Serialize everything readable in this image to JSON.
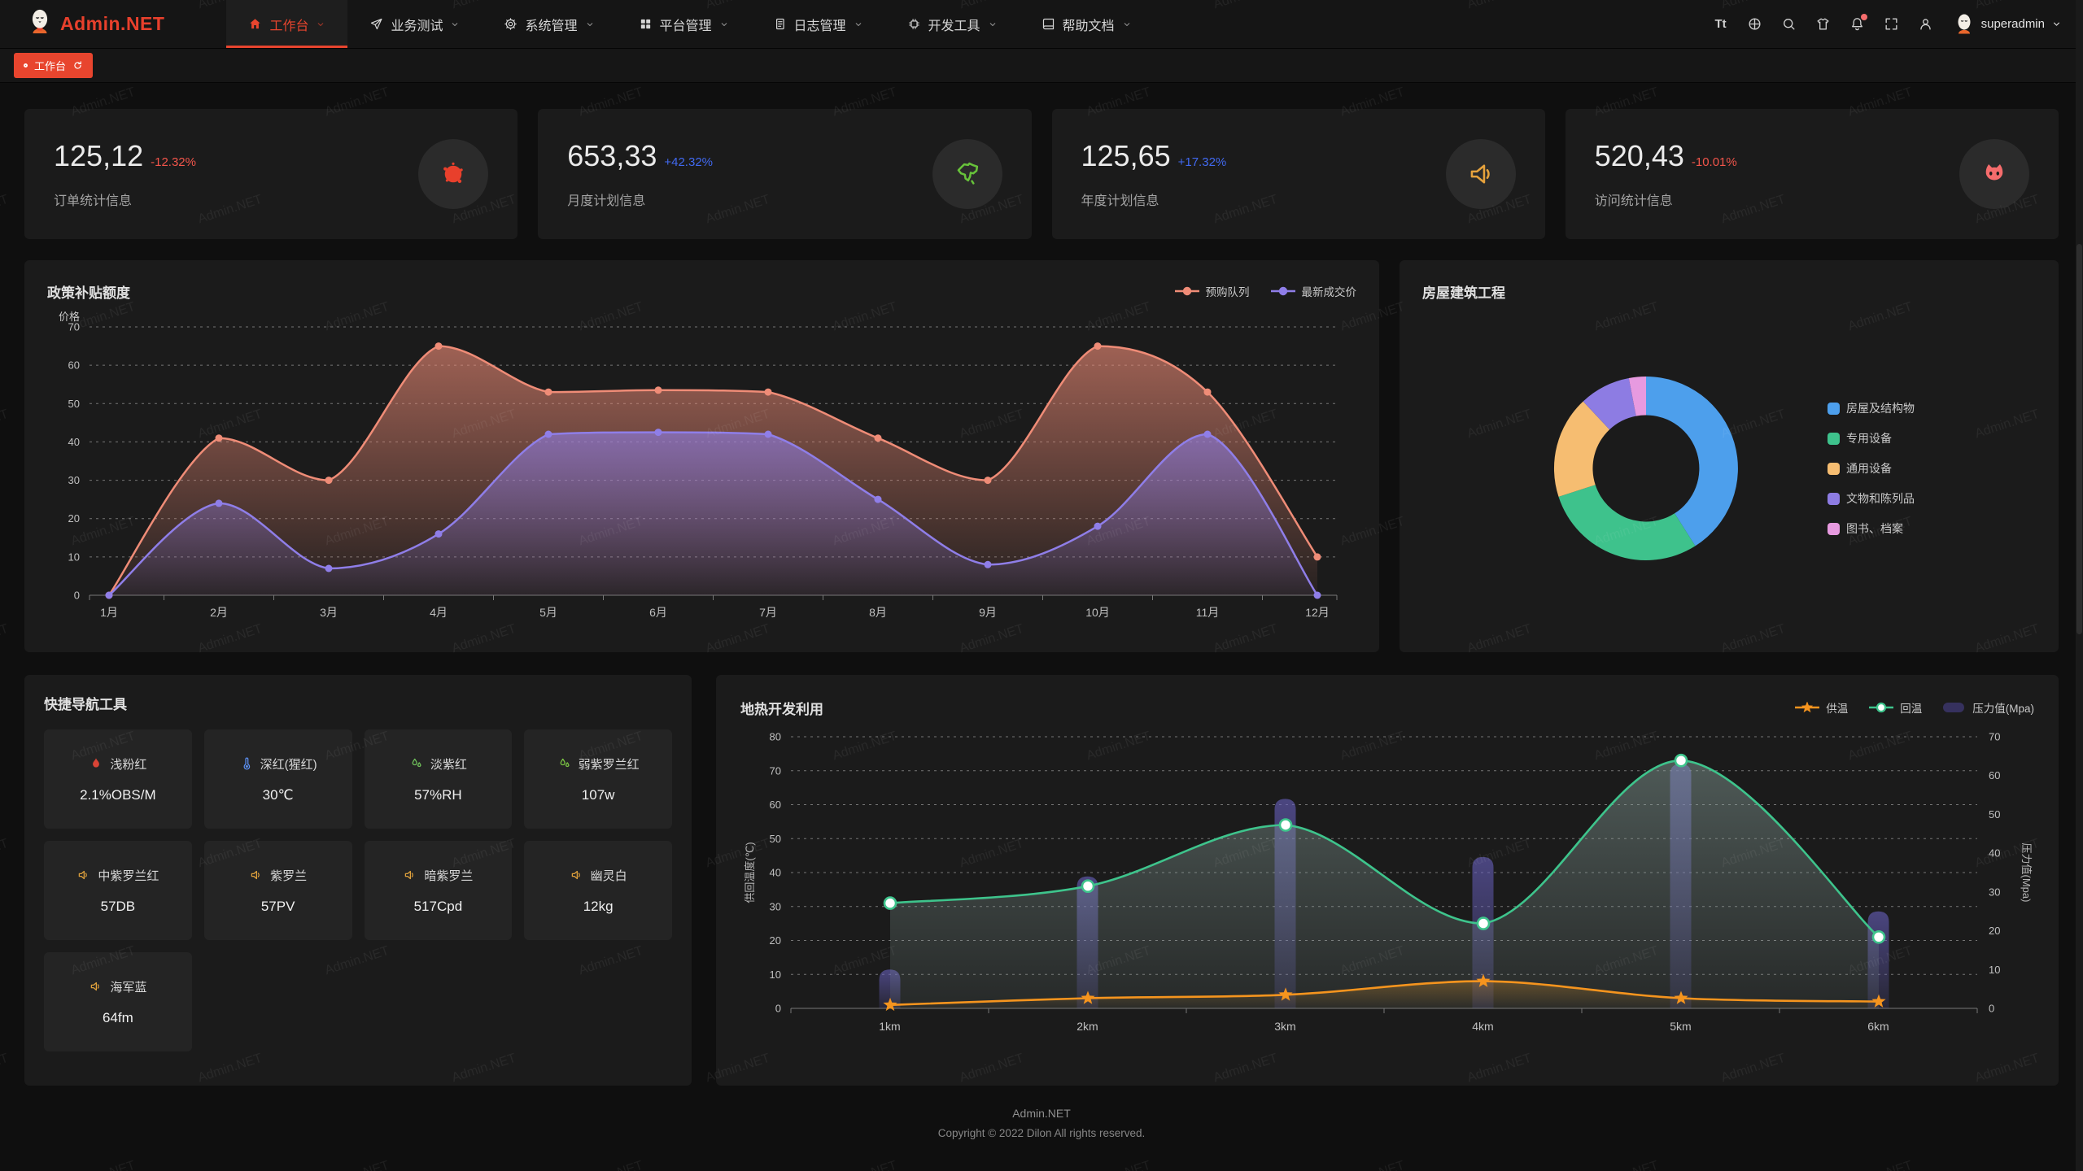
{
  "brand": {
    "name": "Admin.NET",
    "color": "#e8402c"
  },
  "nav": {
    "items": [
      {
        "id": "workbench",
        "label": "工作台",
        "icon": "home",
        "active": true
      },
      {
        "id": "business-test",
        "label": "业务测试",
        "icon": "send",
        "active": false
      },
      {
        "id": "system-manage",
        "label": "系统管理",
        "icon": "gear",
        "active": false
      },
      {
        "id": "platform-manage",
        "label": "平台管理",
        "icon": "grid",
        "active": false
      },
      {
        "id": "log-manage",
        "label": "日志管理",
        "icon": "document",
        "active": false
      },
      {
        "id": "dev-tools",
        "label": "开发工具",
        "icon": "chip",
        "active": false
      },
      {
        "id": "help-docs",
        "label": "帮助文档",
        "icon": "book",
        "active": false
      }
    ]
  },
  "topbar": {
    "icons": [
      {
        "id": "font-size",
        "badge": false
      },
      {
        "id": "globe",
        "badge": false
      },
      {
        "id": "search",
        "badge": false
      },
      {
        "id": "shirt",
        "badge": false
      },
      {
        "id": "bell",
        "badge": true
      },
      {
        "id": "fullscreen",
        "badge": false
      },
      {
        "id": "user",
        "badge": false
      }
    ],
    "user": {
      "name": "superadmin"
    }
  },
  "tabs": [
    {
      "id": "workbench",
      "label": "工作台",
      "active": true
    }
  ],
  "stats": [
    {
      "value": "125,12",
      "delta": "-12.32%",
      "delta_color": "#f2554b",
      "label": "订单统计信息",
      "icon": "splash",
      "icon_color": "#e8402c"
    },
    {
      "value": "653,33",
      "delta": "+42.32%",
      "delta_color": "#4169f0",
      "label": "月度计划信息",
      "icon": "china-map",
      "icon_color": "#67c23a"
    },
    {
      "value": "125,65",
      "delta": "+17.32%",
      "delta_color": "#4169f0",
      "label": "年度计划信息",
      "icon": "horn",
      "icon_color": "#e6a23c"
    },
    {
      "value": "520,43",
      "delta": "-10.01%",
      "delta_color": "#f2554b",
      "label": "访问统计信息",
      "icon": "cat",
      "icon_color": "#f56c6c"
    }
  ],
  "chart_data": [
    {
      "type": "line",
      "title": "政策补贴额度",
      "ylabel": "价格",
      "categories": [
        "1月",
        "2月",
        "3月",
        "4月",
        "5月",
        "6月",
        "7月",
        "8月",
        "9月",
        "10月",
        "11月",
        "12月"
      ],
      "ylim": [
        0,
        70
      ],
      "y_interval": 10,
      "grid": true,
      "legend_position": "top-right",
      "series": [
        {
          "name": "预购队列",
          "color": "#ef8c77",
          "values": [
            0,
            41,
            30,
            65,
            53,
            53.5,
            53,
            41,
            30,
            65,
            53,
            10
          ]
        },
        {
          "name": "最新成交价",
          "color": "#8f7ee8",
          "values": [
            0,
            24,
            7,
            16,
            42,
            42.5,
            42,
            25,
            8,
            18,
            42,
            0
          ]
        }
      ]
    },
    {
      "type": "pie",
      "title": "房屋建筑工程",
      "labels": [
        "房屋及结构物",
        "专用设备",
        "通用设备",
        "文物和陈列品",
        "图书、档案"
      ],
      "values": [
        41,
        29,
        18,
        9,
        3
      ],
      "colors": [
        "#4d9fec",
        "#3ec28c",
        "#f6bd71",
        "#8d7ce3",
        "#e79ae0"
      ],
      "inner_radius_ratio": 0.58,
      "legend_position": "right"
    },
    {
      "type": "line+bar",
      "title": "地热开发利用",
      "categories": [
        "1km",
        "2km",
        "3km",
        "4km",
        "5km",
        "6km"
      ],
      "ylabel_left": "供回温度(℃)",
      "ylabel_right": "压力值(Mpa)",
      "ylim_left": [
        0,
        80
      ],
      "ylim_right": [
        0,
        70
      ],
      "y_interval": 10,
      "grid": true,
      "legend_position": "top-right",
      "series": [
        {
          "name": "供温",
          "kind": "line",
          "marker": "star",
          "color": "#f5941e",
          "axis": "left",
          "values": [
            1,
            3,
            4,
            8,
            3,
            2
          ]
        },
        {
          "name": "回温",
          "kind": "line",
          "marker": "circle",
          "color": "#3ec48c",
          "axis": "left",
          "values": [
            31,
            36,
            54,
            25,
            73,
            21
          ]
        },
        {
          "name": "压力值(Mpa)",
          "kind": "bar",
          "marker": "rect",
          "color": "#36315e",
          "axis": "right",
          "values": [
            10,
            34,
            54,
            39,
            63,
            25
          ]
        }
      ]
    }
  ],
  "quick_nav": {
    "title": "快捷导航工具",
    "items": [
      {
        "name": "浅粉红",
        "value": "2.1%OBS/M",
        "icon": "flame",
        "icon_color": "#d94436"
      },
      {
        "name": "深红(猩红)",
        "value": "30℃",
        "icon": "thermometer",
        "icon_color": "#5b8ff0"
      },
      {
        "name": "淡紫红",
        "value": "57%RH",
        "icon": "droplets",
        "icon_color": "#6fbf5a"
      },
      {
        "name": "弱紫罗兰红",
        "value": "107w",
        "icon": "droplets",
        "icon_color": "#7ac243"
      },
      {
        "name": "中紫罗兰红",
        "value": "57DB",
        "icon": "speaker",
        "icon_color": "#dfa13c"
      },
      {
        "name": "紫罗兰",
        "value": "57PV",
        "icon": "speaker",
        "icon_color": "#dfa13c"
      },
      {
        "name": "暗紫罗兰",
        "value": "517Cpd",
        "icon": "speaker",
        "icon_color": "#dfa13c"
      },
      {
        "name": "幽灵白",
        "value": "12kg",
        "icon": "speaker",
        "icon_color": "#dfa13c"
      },
      {
        "name": "海军蓝",
        "value": "64fm",
        "icon": "speaker",
        "icon_color": "#dfa13c"
      }
    ]
  },
  "footer": {
    "line1": "Admin.NET",
    "line2": "Copyright © 2022 Dilon All rights reserved."
  },
  "watermark": "Admin.NET"
}
